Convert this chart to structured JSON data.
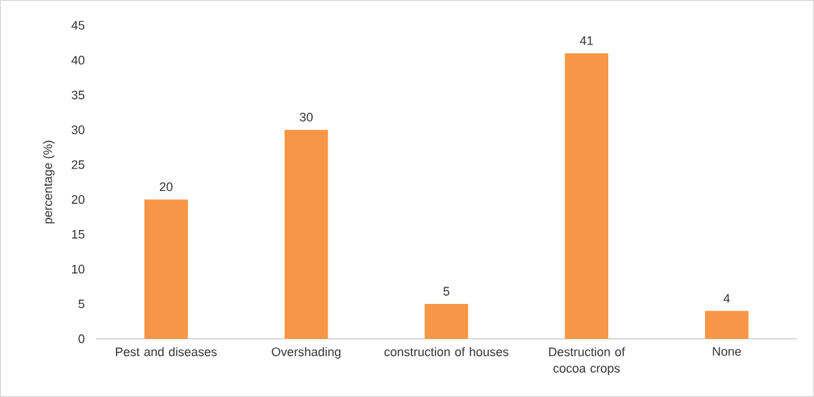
{
  "chart_data": {
    "type": "bar",
    "ylabel": "percentage (%)",
    "categories": [
      "Pest and diseases",
      "Overshading",
      "construction of houses",
      "Destruction of cocoa crops",
      "None"
    ],
    "values": [
      20,
      30,
      5,
      41,
      4
    ],
    "color": "#f79646",
    "ylim": [
      0,
      45
    ],
    "yticks": [
      0,
      5,
      10,
      15,
      20,
      25,
      30,
      35,
      40,
      45
    ],
    "data_labels": true
  }
}
